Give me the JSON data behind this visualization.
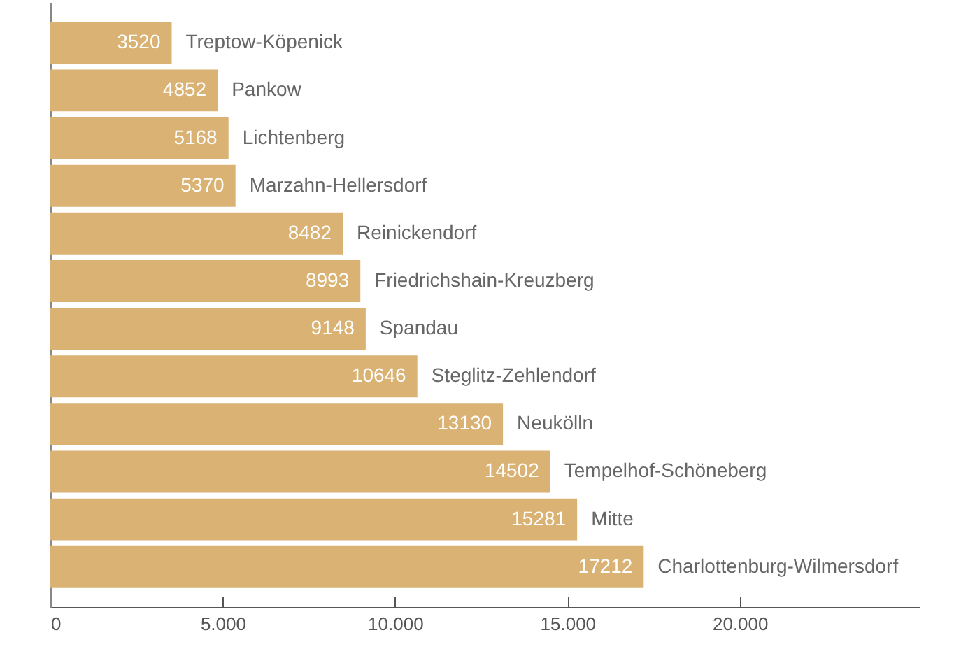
{
  "chart_data": {
    "type": "bar",
    "orientation": "horizontal",
    "categories": [
      "Treptow-Köpenick",
      "Pankow",
      "Lichtenberg",
      "Marzahn-Hellersdorf",
      "Reinickendorf",
      "Friedrichshain-Kreuzberg",
      "Spandau",
      "Steglitz-Zehlendorf",
      "Neukölln",
      "Tempelhof-Schöneberg",
      "Mitte",
      "Charlottenburg-Wilmersdorf"
    ],
    "values": [
      3520,
      4852,
      5168,
      5370,
      8482,
      8993,
      9148,
      10646,
      13130,
      14502,
      15281,
      17212
    ],
    "color": "#d9b274",
    "data_labels": true,
    "grid": false,
    "tick_labels": "x",
    "xlim": [
      0,
      25200
    ],
    "xticks": [
      0,
      {
        "value": 5000,
        "label": "5.000"
      },
      {
        "value": 10000,
        "label": "10.000"
      },
      {
        "value": 15000,
        "label": "15.000"
      },
      {
        "value": 20000,
        "label": "20.000"
      }
    ]
  }
}
